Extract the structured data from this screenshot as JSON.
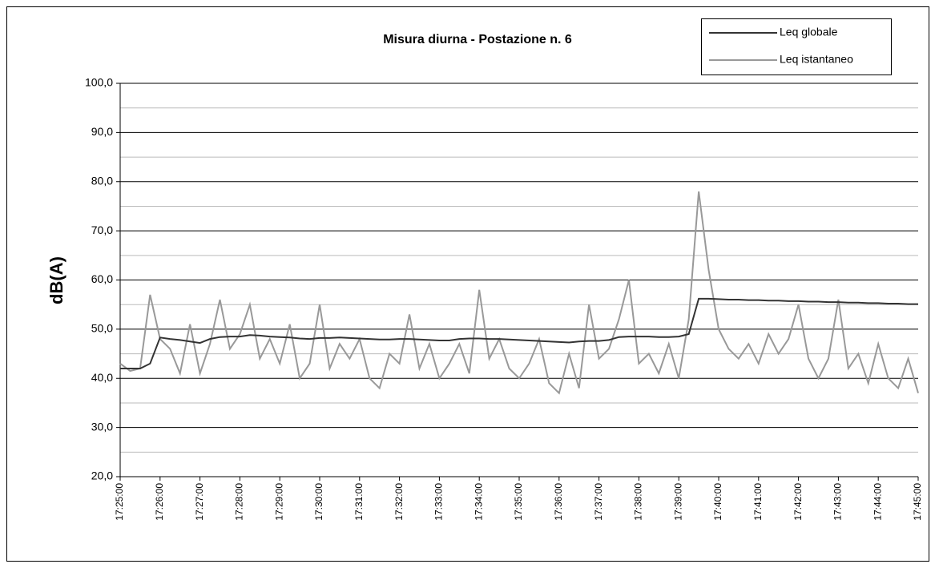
{
  "chart_data": {
    "type": "line",
    "title": "Misura diurna - Postazione n. 6",
    "y_label": "dB(A)",
    "x": [
      "17:25:00",
      "17:25:15",
      "17:25:30",
      "17:25:45",
      "17:26:00",
      "17:26:15",
      "17:26:30",
      "17:26:45",
      "17:27:00",
      "17:27:15",
      "17:27:30",
      "17:27:45",
      "17:28:00",
      "17:28:15",
      "17:28:30",
      "17:28:45",
      "17:29:00",
      "17:29:15",
      "17:29:30",
      "17:29:45",
      "17:30:00",
      "17:30:15",
      "17:30:30",
      "17:30:45",
      "17:31:00",
      "17:31:15",
      "17:31:30",
      "17:31:45",
      "17:32:00",
      "17:32:15",
      "17:32:30",
      "17:32:45",
      "17:33:00",
      "17:33:15",
      "17:33:30",
      "17:33:45",
      "17:34:00",
      "17:34:15",
      "17:34:30",
      "17:34:45",
      "17:35:00",
      "17:35:15",
      "17:35:30",
      "17:35:45",
      "17:36:00",
      "17:36:15",
      "17:36:30",
      "17:36:45",
      "17:37:00",
      "17:37:15",
      "17:37:30",
      "17:37:45",
      "17:38:00",
      "17:38:15",
      "17:38:30",
      "17:38:45",
      "17:39:00",
      "17:39:15",
      "17:39:30",
      "17:39:45",
      "17:40:00",
      "17:40:15",
      "17:40:30",
      "17:40:45",
      "17:41:00",
      "17:41:15",
      "17:41:30",
      "17:41:45",
      "17:42:00",
      "17:42:15",
      "17:42:30",
      "17:42:45",
      "17:43:00",
      "17:43:15",
      "17:43:30",
      "17:43:45",
      "17:44:00",
      "17:44:15",
      "17:44:30",
      "17:44:45",
      "17:45:00"
    ],
    "series": [
      {
        "name": "Leq globale",
        "color": "#333333",
        "values": [
          42,
          42,
          42,
          43,
          48.3,
          48,
          47.8,
          47.5,
          47.2,
          48,
          48.4,
          48.5,
          48.5,
          48.8,
          48.7,
          48.5,
          48.4,
          48.3,
          48.1,
          48,
          48.2,
          48.2,
          48.3,
          48.2,
          48.1,
          48,
          47.9,
          47.9,
          48,
          48,
          47.9,
          47.8,
          47.7,
          47.7,
          48,
          48.1,
          48.1,
          48,
          48,
          47.9,
          47.8,
          47.7,
          47.6,
          47.5,
          47.4,
          47.3,
          47.5,
          47.6,
          47.6,
          47.8,
          48.4,
          48.5,
          48.5,
          48.5,
          48.4,
          48.4,
          48.5,
          49,
          56.2,
          56.2,
          56.1,
          56,
          56,
          55.9,
          55.9,
          55.8,
          55.8,
          55.7,
          55.7,
          55.6,
          55.6,
          55.5,
          55.5,
          55.4,
          55.4,
          55.3,
          55.3,
          55.2,
          55.2,
          55.1,
          55.1
        ]
      },
      {
        "name": "Leq istantaneo",
        "color": "#999999",
        "values": [
          43,
          41.5,
          42,
          57,
          48,
          46,
          41,
          51,
          41,
          47,
          56,
          46,
          49,
          55,
          44,
          48,
          43,
          51,
          40,
          43,
          55,
          42,
          47,
          44,
          48,
          40,
          38,
          45,
          43,
          53,
          42,
          47,
          40,
          43,
          47,
          41,
          58,
          44,
          48,
          42,
          40,
          43,
          48,
          39,
          37,
          45,
          38,
          55,
          44,
          46,
          52,
          60,
          43,
          45,
          41,
          47,
          40,
          52,
          78,
          62,
          50,
          46,
          44,
          47,
          43,
          49,
          45,
          48,
          55,
          44,
          40,
          44,
          56,
          42,
          45,
          39,
          47,
          40,
          38,
          44,
          37
        ]
      }
    ],
    "xticks": [
      "17:25:00",
      "17:26:00",
      "17:27:00",
      "17:28:00",
      "17:29:00",
      "17:30:00",
      "17:31:00",
      "17:32:00",
      "17:33:00",
      "17:34:00",
      "17:35:00",
      "17:36:00",
      "17:37:00",
      "17:38:00",
      "17:39:00",
      "17:40:00",
      "17:41:00",
      "17:42:00",
      "17:43:00",
      "17:44:00",
      "17:45:00"
    ],
    "ylim": [
      20,
      100
    ],
    "yticks": [
      {
        "value": 20,
        "label": "20,0"
      },
      {
        "value": 30,
        "label": "30,0"
      },
      {
        "value": 40,
        "label": "40,0"
      },
      {
        "value": 50,
        "label": "50,0"
      },
      {
        "value": 60,
        "label": "60,0"
      },
      {
        "value": 70,
        "label": "70,0"
      },
      {
        "value": 80,
        "label": "80,0"
      },
      {
        "value": 90,
        "label": "90,0"
      },
      {
        "value": 100,
        "label": "100,0"
      }
    ],
    "minor_yticks": [
      25,
      35,
      45,
      55,
      65,
      75,
      85,
      95
    ],
    "grid": true,
    "legend": "top-right"
  }
}
